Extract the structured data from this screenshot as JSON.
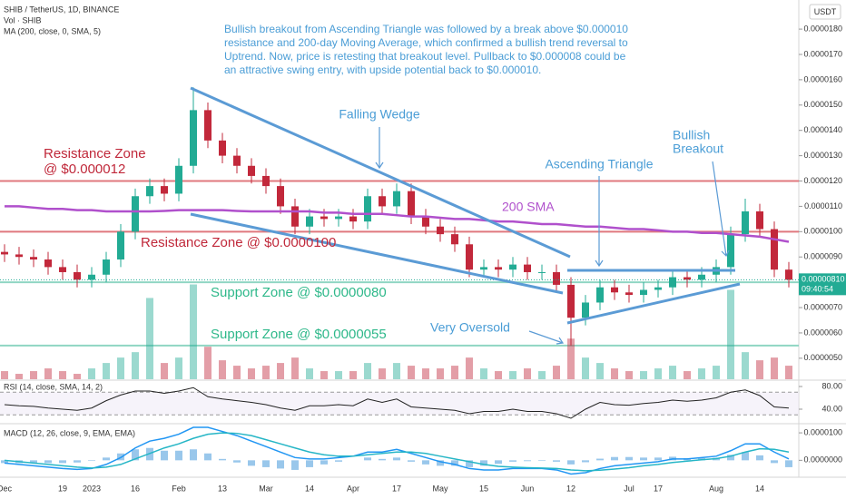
{
  "chart_data": [
    {
      "type": "candlestick",
      "legend": [
        "SHIB / TetherUS, 1D, BINANCE",
        "Vol · SHIB",
        "MA (200, close, 0, SMA, 5)"
      ],
      "currency": "USDT",
      "categories": [
        "Dec",
        null,
        null,
        null,
        "19",
        null,
        "2023",
        null,
        null,
        "16",
        null,
        null,
        "Feb",
        null,
        null,
        "13",
        null,
        null,
        "Mar",
        null,
        null,
        "14",
        null,
        null,
        "Apr",
        null,
        null,
        "17",
        null,
        null,
        "May",
        null,
        null,
        "15",
        null,
        null,
        "Jun",
        null,
        null,
        "12",
        null,
        null,
        null,
        "Jul",
        null,
        "17",
        null,
        null,
        null,
        "Aug",
        null,
        null,
        "14",
        null,
        null
      ],
      "open": [
        9.2e-06,
        9.1e-06,
        9e-06,
        8.9e-06,
        8.6e-06,
        8.4e-06,
        8.1e-06,
        8.3e-06,
        8.9e-06,
        1e-05,
        1.14e-05,
        1.18e-05,
        1.15e-05,
        1.26e-05,
        1.48e-05,
        1.36e-05,
        1.3e-05,
        1.26e-05,
        1.22e-05,
        1.18e-05,
        1.1e-05,
        1.02e-05,
        1.06e-05,
        1.05e-05,
        1.06e-05,
        1.04e-05,
        1.14e-05,
        1.1e-05,
        1.16e-05,
        1.06e-05,
        1.02e-05,
        9.9e-06,
        9.5e-06,
        8.5e-06,
        8.6e-06,
        8.5e-06,
        8.7e-06,
        8.4e-06,
        8.4e-06,
        7.9e-06,
        6.6e-06,
        7.2e-06,
        7.8e-06,
        7.6e-06,
        7.5e-06,
        7.7e-06,
        7.8e-06,
        8.2e-06,
        8.1e-06,
        8.3e-06,
        8.6e-06,
        9.9e-06,
        1.08e-05,
        1.01e-05,
        8.5e-06
      ],
      "high": [
        9.5e-06,
        9.4e-06,
        9.3e-06,
        9.2e-06,
        8.9e-06,
        8.7e-06,
        8.6e-06,
        9.2e-06,
        1.03e-05,
        1.17e-05,
        1.21e-05,
        1.21e-05,
        1.29e-05,
        1.57e-05,
        1.51e-05,
        1.39e-05,
        1.33e-05,
        1.29e-05,
        1.25e-05,
        1.21e-05,
        1.13e-05,
        1.09e-05,
        1.09e-05,
        1.09e-05,
        1.09e-05,
        1.17e-05,
        1.17e-05,
        1.19e-05,
        1.19e-05,
        1.09e-05,
        1.05e-05,
        1.02e-05,
        9.8e-06,
        8.9e-06,
        8.9e-06,
        9e-06,
        9e-06,
        8.7e-06,
        8.7e-06,
        8.2e-06,
        7.5e-06,
        8.1e-06,
        8.1e-06,
        7.9e-06,
        8e-06,
        8.1e-06,
        8.5e-06,
        8.5e-06,
        8.6e-06,
        8.9e-06,
        1.02e-05,
        1.13e-05,
        1.11e-05,
        1.04e-05,
        8.8e-06
      ],
      "low": [
        8.8e-06,
        8.7e-06,
        8.6e-06,
        8.3e-06,
        8.1e-06,
        7.8e-06,
        7.8e-06,
        8e-06,
        8.6e-06,
        9.7e-06,
        1.11e-05,
        1.12e-05,
        1.12e-05,
        1.23e-05,
        1.33e-05,
        1.27e-05,
        1.23e-05,
        1.19e-05,
        1.15e-05,
        1.07e-05,
        9.9e-06,
        9.9e-06,
        1.02e-05,
        1.02e-05,
        1.01e-05,
        1.01e-05,
        1.07e-05,
        1.07e-05,
        1.03e-05,
        9.9e-06,
        9.6e-06,
        9.2e-06,
        8.2e-06,
        8.2e-06,
        8.2e-06,
        8.2e-06,
        8.1e-06,
        8.1e-06,
        7.6e-06,
        5.5e-06,
        6.3e-06,
        6.9e-06,
        7.3e-06,
        7.2e-06,
        7.2e-06,
        7.4e-06,
        7.5e-06,
        7.8e-06,
        7.8e-06,
        8e-06,
        8.3e-06,
        9.6e-06,
        9.8e-06,
        8.2e-06,
        7.8e-06
      ],
      "close": [
        9.1e-06,
        9e-06,
        8.9e-06,
        8.6e-06,
        8.4e-06,
        8.1e-06,
        8.3e-06,
        8.9e-06,
        1e-05,
        1.14e-05,
        1.18e-05,
        1.15e-05,
        1.26e-05,
        1.48e-05,
        1.36e-05,
        1.3e-05,
        1.26e-05,
        1.22e-05,
        1.18e-05,
        1.1e-05,
        1.02e-05,
        1.06e-05,
        1.05e-05,
        1.06e-05,
        1.04e-05,
        1.14e-05,
        1.1e-05,
        1.16e-05,
        1.06e-05,
        1.02e-05,
        9.9e-06,
        9.5e-06,
        8.5e-06,
        8.6e-06,
        8.5e-06,
        8.7e-06,
        8.4e-06,
        8.4e-06,
        7.9e-06,
        6.6e-06,
        7.2e-06,
        7.8e-06,
        7.6e-06,
        7.5e-06,
        7.7e-06,
        7.8e-06,
        8.2e-06,
        8.1e-06,
        8.3e-06,
        8.6e-06,
        9.9e-06,
        1.08e-05,
        1.01e-05,
        8.5e-06,
        8.1e-06
      ],
      "up_color": "#22ab94",
      "down_color": "#c2283b",
      "series": [
        {
          "name": "200 SMA",
          "color": "#b050cc",
          "values": [
            1.1e-05,
            1.1e-05,
            1.095e-05,
            1.09e-05,
            1.09e-05,
            1.085e-05,
            1.085e-05,
            1.08e-05,
            1.08e-05,
            1.08e-05,
            1.08e-05,
            1.082e-05,
            1.085e-05,
            1.085e-05,
            1.085e-05,
            1.085e-05,
            1.082e-05,
            1.08e-05,
            1.08e-05,
            1.08e-05,
            1.08e-05,
            1.08e-05,
            1.075e-05,
            1.075e-05,
            1.07e-05,
            1.07e-05,
            1.07e-05,
            1.065e-05,
            1.06e-05,
            1.06e-05,
            1.055e-05,
            1.05e-05,
            1.05e-05,
            1.045e-05,
            1.04e-05,
            1.04e-05,
            1.035e-05,
            1.03e-05,
            1.03e-05,
            1.025e-05,
            1.02e-05,
            1.02e-05,
            1.015e-05,
            1.01e-05,
            1.01e-05,
            1.005e-05,
            1e-05,
            1e-05,
            9.95e-06,
            9.95e-06,
            9.9e-06,
            9.85e-06,
            9.8e-06,
            9.7e-06,
            9.6e-06
          ]
        }
      ],
      "volume": {
        "ylim": [
          0,
          140
        ],
        "values": [
          3,
          2,
          3,
          4,
          3,
          2,
          4,
          6,
          8,
          10,
          30,
          6,
          8,
          35,
          12,
          7,
          5,
          4,
          5,
          6,
          8,
          4,
          3,
          3,
          3,
          6,
          4,
          6,
          5,
          4,
          4,
          5,
          8,
          4,
          3,
          3,
          4,
          3,
          5,
          15,
          8,
          6,
          4,
          3,
          3,
          4,
          5,
          3,
          4,
          5,
          33,
          10,
          7,
          8,
          5
        ]
      },
      "ylim": [
        4.17e-06,
        1.915e-05
      ],
      "yticks": [
        {
          "value": 5e-06,
          "label": "0.0000050"
        },
        {
          "value": 6e-06,
          "label": "0.0000060"
        },
        {
          "value": 7e-06,
          "label": "0.0000070"
        },
        {
          "value": 8e-06,
          "label": "0.0000080"
        },
        {
          "value": 9e-06,
          "label": "0.0000090"
        },
        {
          "value": 1e-05,
          "label": "0.0000100"
        },
        {
          "value": 1.1e-05,
          "label": "0.0000110"
        },
        {
          "value": 1.2e-05,
          "label": "0.0000120"
        },
        {
          "value": 1.3e-05,
          "label": "0.0000130"
        },
        {
          "value": 1.4e-05,
          "label": "0.0000140"
        },
        {
          "value": 1.5e-05,
          "label": "0.0000150"
        },
        {
          "value": 1.6e-05,
          "label": "0.0000160"
        },
        {
          "value": 1.7e-05,
          "label": "0.0000170"
        },
        {
          "value": 1.8e-05,
          "label": "0.0000180"
        }
      ],
      "levels": [
        {
          "value": 1.2e-05,
          "color": "#e0787e"
        },
        {
          "value": 1e-05,
          "color": "#e0787e"
        },
        {
          "value": 8e-06,
          "color": "#8fd6c3"
        },
        {
          "value": 5.5e-06,
          "color": "#8fd6c3"
        }
      ],
      "last_price": {
        "value": 8.1e-06,
        "label": "0.00000810",
        "timer": "09:40:54"
      },
      "annotations": {
        "note": [
          "Bullish breakout from Ascending Triangle was followed by a break above $0.000010",
          "resistance and 200-day Moving Average, which confirmed a bullish trend reversal to",
          "Uptrend. Now, price is retesting that breakout level. Pullback to $0.000008 could be",
          "an attractive swing entry, with upside potential back to $0.000010."
        ],
        "falling_wedge": "Falling Wedge",
        "ascending_triangle": "Ascending Triangle",
        "bullish_breakout": [
          "Bullish",
          "Breakout"
        ],
        "very_oversold": "Very Oversold",
        "resistance_12": [
          "Resistance Zone",
          "@ $0.000012"
        ],
        "resistance_10": "Resistance Zone @ $0.0000100",
        "support_8": "Support Zone @ $0.0000080",
        "support_55": "Support Zone @ $0.0000055"
      }
    },
    {
      "type": "line",
      "legend": "RSI (14, close, SMA, 14, 2)",
      "color": "#222222",
      "values": [
        48,
        46,
        45,
        42,
        40,
        38,
        42,
        55,
        65,
        72,
        72,
        68,
        72,
        78,
        62,
        58,
        55,
        52,
        48,
        42,
        38,
        46,
        46,
        48,
        46,
        58,
        52,
        58,
        44,
        42,
        40,
        38,
        32,
        36,
        36,
        40,
        36,
        36,
        32,
        24,
        40,
        52,
        48,
        47,
        50,
        52,
        56,
        54,
        56,
        60,
        70,
        74,
        64,
        44,
        42
      ],
      "ylim": [
        16,
        89.6
      ],
      "yticks": [
        {
          "value": 80,
          "label": "80.00"
        },
        {
          "value": 40,
          "label": "40.00"
        }
      ],
      "bands": [
        70,
        30
      ]
    },
    {
      "type": "macd",
      "legend": "MACD (12, 26, close, 9, EMA, EMA)",
      "macd": {
        "color": "#2196f3",
        "values": [
          -1e-06,
          -1.5e-06,
          -2e-06,
          -2.5e-06,
          -3e-06,
          -3.3e-06,
          -3e-06,
          -1.5e-06,
          1e-06,
          4.5e-06,
          7e-06,
          8e-06,
          9.5e-06,
          1.2e-05,
          1.2e-05,
          1.05e-05,
          9e-06,
          7e-06,
          5e-06,
          3e-06,
          1e-06,
          5e-07,
          5e-07,
          1e-06,
          1.5e-06,
          3e-06,
          3e-06,
          4e-06,
          2.5e-06,
          1e-06,
          -5e-07,
          -1.5e-06,
          -3e-06,
          -3.5e-06,
          -3.5e-06,
          -3e-06,
          -3e-06,
          -3e-06,
          -3.5e-06,
          -5e-06,
          -4.5e-06,
          -3e-06,
          -2e-06,
          -1.5e-06,
          -1e-06,
          -5e-07,
          5e-07,
          5e-07,
          1e-06,
          1.5e-06,
          3.5e-06,
          6e-06,
          6e-06,
          3e-06,
          5e-07
        ]
      },
      "signal": {
        "color": "#26b6c6",
        "values": [
          0,
          -5e-07,
          -1e-06,
          -1.5e-06,
          -2e-06,
          -2.5e-06,
          -2.8e-06,
          -2.5e-06,
          -1.5e-06,
          5e-07,
          2.5e-06,
          4.5e-06,
          6e-06,
          8e-06,
          9.5e-06,
          1e-05,
          9.8e-06,
          9e-06,
          7.5e-06,
          6e-06,
          4.5e-06,
          3e-06,
          2e-06,
          1.5e-06,
          1.5e-06,
          2e-06,
          2.5e-06,
          3e-06,
          3e-06,
          2.5e-06,
          1.5e-06,
          5e-07,
          -5e-07,
          -1.5e-06,
          -2.2e-06,
          -2.5e-06,
          -2.7e-06,
          -2.8e-06,
          -3e-06,
          -3.5e-06,
          -3.8e-06,
          -3.6e-06,
          -3.2e-06,
          -2.7e-06,
          -2e-06,
          -1.5e-06,
          -8e-07,
          -3e-07,
          2e-07,
          6e-07,
          1.5e-06,
          3e-06,
          4.2e-06,
          4e-06,
          3e-06
        ]
      },
      "histogram": {
        "color": "#7fb9e6",
        "values": [
          -1e-06,
          -1e-06,
          -1e-06,
          -1e-06,
          -1e-06,
          -8e-07,
          -2e-07,
          1e-06,
          2.5e-06,
          4e-06,
          4.5e-06,
          3.5e-06,
          3.5e-06,
          4e-06,
          2.5e-06,
          5e-07,
          -8e-07,
          -2e-06,
          -2.5e-06,
          -3e-06,
          -3.5e-06,
          -2.5e-06,
          -1.5e-06,
          -5e-07,
          0,
          1e-06,
          5e-07,
          1e-06,
          -5e-07,
          -1.5e-06,
          -2e-06,
          -2e-06,
          -2.5e-06,
          -2e-06,
          -1.3e-06,
          -5e-07,
          -3e-07,
          -2e-07,
          -5e-07,
          -1.5e-06,
          -7e-07,
          6e-07,
          1.2e-06,
          1.2e-06,
          1e-06,
          1e-06,
          1.3e-06,
          8e-07,
          8e-07,
          9e-07,
          2e-06,
          3e-06,
          1.8e-06,
          -1e-06,
          -2.5e-06
        ]
      },
      "ylim": [
        -5.5e-06,
        1.3e-05
      ],
      "yticks": [
        {
          "value": 1e-05,
          "label": "0.0000100"
        },
        {
          "value": 0,
          "label": "0.0000000"
        }
      ]
    }
  ]
}
